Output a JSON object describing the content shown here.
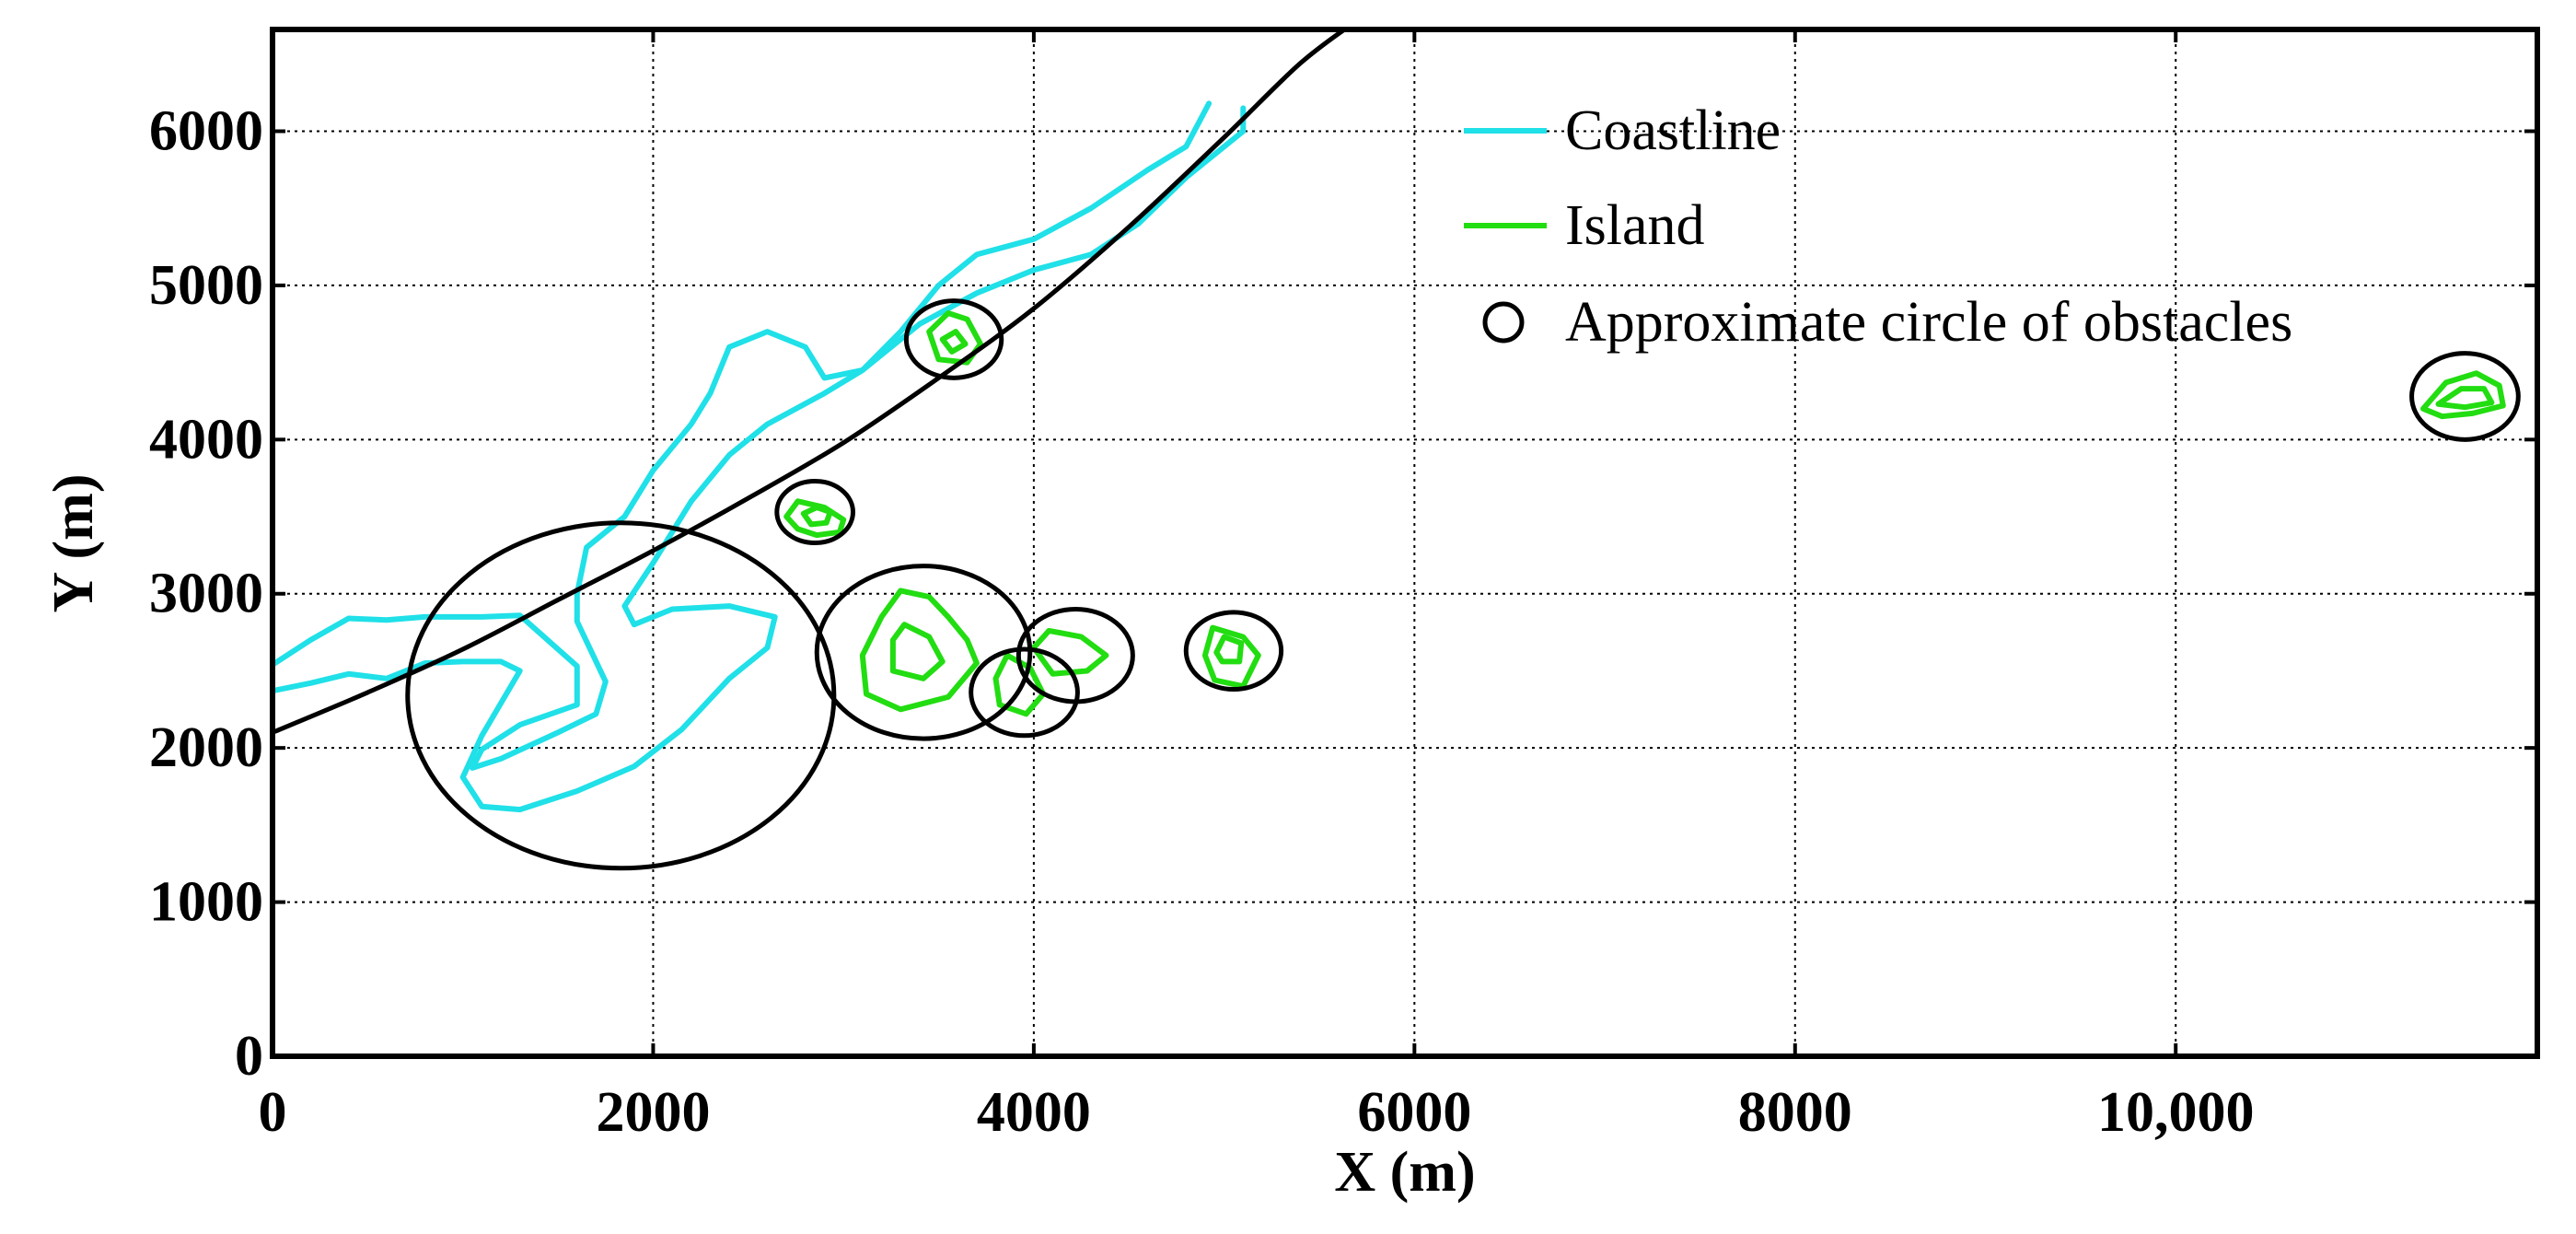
{
  "chart_data": {
    "type": "line",
    "title": "",
    "xlabel": "X (m)",
    "ylabel": "Y (m)",
    "xlim": [
      0,
      11900
    ],
    "ylim": [
      0,
      6660
    ],
    "grid": true,
    "legend_position": "top-right",
    "x_ticks": [
      {
        "value": 0,
        "label": "0"
      },
      {
        "value": 2000,
        "label": "2000"
      },
      {
        "value": 4000,
        "label": "4000"
      },
      {
        "value": 6000,
        "label": "6000"
      },
      {
        "value": 8000,
        "label": "8000"
      },
      {
        "value": 10000,
        "label": "10,000"
      }
    ],
    "y_ticks": [
      {
        "value": 0,
        "label": "0"
      },
      {
        "value": 1000,
        "label": "1000"
      },
      {
        "value": 2000,
        "label": "2000"
      },
      {
        "value": 3000,
        "label": "3000"
      },
      {
        "value": 4000,
        "label": "4000"
      },
      {
        "value": 5000,
        "label": "5000"
      },
      {
        "value": 6000,
        "label": "6000"
      }
    ],
    "colors": {
      "coastline": "#20e0e8",
      "island": "#22dd11",
      "circle": "#000000",
      "path": "#000000"
    },
    "legend": [
      {
        "label": "Coastline",
        "kind": "line",
        "color": "#20e0e8"
      },
      {
        "label": "Island",
        "kind": "line",
        "color": "#22dd11"
      },
      {
        "label": "Approximate circle of obstacles",
        "kind": "circle",
        "color": "#000000"
      }
    ],
    "series": [
      {
        "kind": "coastline",
        "points": [
          [
            0,
            2540
          ],
          [
            200,
            2700
          ],
          [
            400,
            2840
          ],
          [
            600,
            2830
          ],
          [
            800,
            2850
          ],
          [
            1100,
            2850
          ],
          [
            1300,
            2860
          ],
          [
            1600,
            2530
          ],
          [
            1600,
            2280
          ],
          [
            1300,
            2150
          ],
          [
            1100,
            1990
          ],
          [
            1050,
            1870
          ],
          [
            1200,
            1930
          ],
          [
            1500,
            2100
          ],
          [
            1700,
            2220
          ],
          [
            1750,
            2430
          ],
          [
            1600,
            2820
          ],
          [
            1600,
            3000
          ],
          [
            1650,
            3300
          ],
          [
            1850,
            3500
          ],
          [
            2000,
            3800
          ],
          [
            2200,
            4100
          ],
          [
            2300,
            4300
          ],
          [
            2400,
            4600
          ],
          [
            2600,
            4700
          ],
          [
            2800,
            4600
          ],
          [
            2900,
            4400
          ],
          [
            3100,
            4450
          ],
          [
            3300,
            4700
          ],
          [
            3500,
            5000
          ],
          [
            3700,
            5200
          ],
          [
            4000,
            5300
          ],
          [
            4300,
            5500
          ],
          [
            4600,
            5750
          ],
          [
            4800,
            5900
          ],
          [
            4920,
            6180
          ]
        ]
      },
      {
        "kind": "coastline",
        "points": [
          [
            0,
            2370
          ],
          [
            200,
            2420
          ],
          [
            400,
            2480
          ],
          [
            600,
            2450
          ],
          [
            800,
            2550
          ],
          [
            1000,
            2560
          ],
          [
            1200,
            2560
          ],
          [
            1300,
            2500
          ],
          [
            1100,
            2080
          ],
          [
            1000,
            1810
          ],
          [
            1100,
            1620
          ],
          [
            1300,
            1600
          ],
          [
            1600,
            1720
          ],
          [
            1900,
            1880
          ],
          [
            2150,
            2120
          ],
          [
            2400,
            2450
          ],
          [
            2600,
            2650
          ],
          [
            2640,
            2850
          ],
          [
            2400,
            2920
          ],
          [
            2100,
            2900
          ],
          [
            1900,
            2800
          ],
          [
            1850,
            2920
          ],
          [
            2000,
            3200
          ],
          [
            2200,
            3600
          ],
          [
            2400,
            3900
          ],
          [
            2600,
            4100
          ],
          [
            2900,
            4300
          ],
          [
            3100,
            4450
          ],
          [
            3400,
            4750
          ],
          [
            3700,
            4950
          ],
          [
            4000,
            5100
          ],
          [
            4300,
            5200
          ],
          [
            4550,
            5400
          ],
          [
            4800,
            5700
          ],
          [
            5100,
            6000
          ],
          [
            5100,
            6150
          ]
        ]
      },
      {
        "kind": "island",
        "points": [
          [
            2700,
            3500
          ],
          [
            2760,
            3600
          ],
          [
            2900,
            3560
          ],
          [
            3000,
            3480
          ],
          [
            2980,
            3400
          ],
          [
            2860,
            3380
          ],
          [
            2760,
            3420
          ],
          [
            2700,
            3500
          ]
        ]
      },
      {
        "kind": "island",
        "points": [
          [
            2790,
            3520
          ],
          [
            2860,
            3560
          ],
          [
            2930,
            3530
          ],
          [
            2910,
            3460
          ],
          [
            2830,
            3450
          ],
          [
            2790,
            3520
          ]
        ]
      },
      {
        "kind": "island",
        "points": [
          [
            3200,
            2850
          ],
          [
            3300,
            3020
          ],
          [
            3450,
            2980
          ],
          [
            3550,
            2850
          ],
          [
            3650,
            2700
          ],
          [
            3700,
            2550
          ],
          [
            3550,
            2330
          ],
          [
            3300,
            2250
          ],
          [
            3120,
            2350
          ],
          [
            3100,
            2600
          ],
          [
            3200,
            2850
          ]
        ]
      },
      {
        "kind": "island",
        "points": [
          [
            3260,
            2700
          ],
          [
            3320,
            2800
          ],
          [
            3450,
            2720
          ],
          [
            3520,
            2560
          ],
          [
            3420,
            2450
          ],
          [
            3260,
            2500
          ],
          [
            3260,
            2700
          ]
        ]
      },
      {
        "kind": "island",
        "points": [
          [
            3450,
            4700
          ],
          [
            3550,
            4820
          ],
          [
            3650,
            4780
          ],
          [
            3720,
            4620
          ],
          [
            3650,
            4500
          ],
          [
            3500,
            4520
          ],
          [
            3450,
            4700
          ]
        ]
      },
      {
        "kind": "island",
        "points": [
          [
            3520,
            4650
          ],
          [
            3590,
            4700
          ],
          [
            3640,
            4620
          ],
          [
            3570,
            4570
          ],
          [
            3520,
            4650
          ]
        ]
      },
      {
        "kind": "island",
        "points": [
          [
            3800,
            2450
          ],
          [
            3860,
            2600
          ],
          [
            3980,
            2520
          ],
          [
            4050,
            2350
          ],
          [
            3960,
            2220
          ],
          [
            3820,
            2280
          ],
          [
            3800,
            2450
          ]
        ]
      },
      {
        "kind": "island",
        "points": [
          [
            4000,
            2650
          ],
          [
            4080,
            2760
          ],
          [
            4250,
            2720
          ],
          [
            4380,
            2600
          ],
          [
            4280,
            2500
          ],
          [
            4100,
            2480
          ],
          [
            4000,
            2650
          ]
        ]
      },
      {
        "kind": "island",
        "points": [
          [
            4900,
            2600
          ],
          [
            4940,
            2780
          ],
          [
            5100,
            2720
          ],
          [
            5180,
            2600
          ],
          [
            5100,
            2400
          ],
          [
            4950,
            2440
          ],
          [
            4900,
            2600
          ]
        ]
      },
      {
        "kind": "island",
        "points": [
          [
            4960,
            2620
          ],
          [
            5000,
            2720
          ],
          [
            5090,
            2680
          ],
          [
            5080,
            2560
          ],
          [
            4990,
            2560
          ],
          [
            4960,
            2620
          ]
        ]
      },
      {
        "kind": "island",
        "points": [
          [
            11300,
            4200
          ],
          [
            11420,
            4370
          ],
          [
            11580,
            4430
          ],
          [
            11700,
            4350
          ],
          [
            11720,
            4220
          ],
          [
            11560,
            4170
          ],
          [
            11400,
            4150
          ],
          [
            11300,
            4200
          ]
        ]
      },
      {
        "kind": "island",
        "points": [
          [
            11380,
            4230
          ],
          [
            11500,
            4330
          ],
          [
            11620,
            4330
          ],
          [
            11660,
            4240
          ],
          [
            11520,
            4210
          ],
          [
            11380,
            4230
          ]
        ]
      }
    ],
    "path": [
      [
        0,
        2100
      ],
      [
        500,
        2360
      ],
      [
        1000,
        2640
      ],
      [
        1500,
        2960
      ],
      [
        2000,
        3280
      ],
      [
        2500,
        3620
      ],
      [
        3000,
        3980
      ],
      [
        3500,
        4400
      ],
      [
        4000,
        4850
      ],
      [
        4500,
        5380
      ],
      [
        5000,
        5960
      ],
      [
        5400,
        6440
      ],
      [
        5700,
        6720
      ]
    ],
    "circles": [
      {
        "cx": 1830,
        "cy": 2340,
        "r": 1120
      },
      {
        "cx": 2850,
        "cy": 3530,
        "r": 200
      },
      {
        "cx": 3580,
        "cy": 4650,
        "r": 250
      },
      {
        "cx": 3420,
        "cy": 2620,
        "r": 560
      },
      {
        "cx": 3950,
        "cy": 2360,
        "r": 280
      },
      {
        "cx": 4220,
        "cy": 2600,
        "r": 300
      },
      {
        "cx": 5050,
        "cy": 2630,
        "r": 250
      },
      {
        "cx": 11520,
        "cy": 4280,
        "r": 280
      }
    ]
  }
}
